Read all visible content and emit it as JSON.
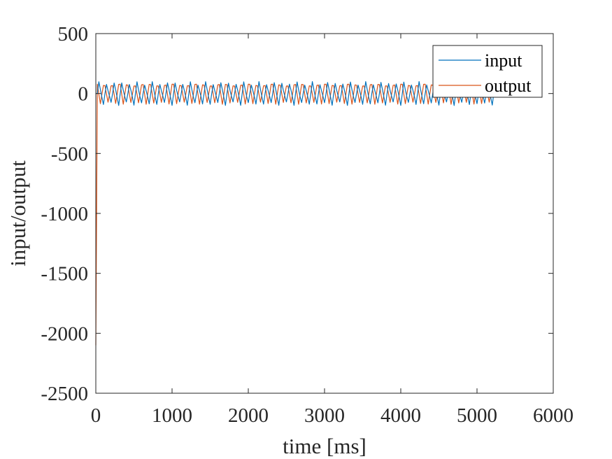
{
  "chart_data": {
    "type": "line",
    "xlabel": "time [ms]",
    "ylabel": "input/output",
    "xlim": [
      0,
      6000
    ],
    "ylim": [
      -2500,
      500
    ],
    "x_ticks": [
      0,
      1000,
      2000,
      3000,
      4000,
      5000,
      6000
    ],
    "y_ticks": [
      500,
      0,
      -500,
      -1000,
      -1500,
      -2000,
      -2500
    ],
    "x_tick_labels": [
      "0",
      "1000",
      "2000",
      "3000",
      "4000",
      "5000",
      "6000"
    ],
    "y_tick_labels": [
      "500",
      "0",
      "-500",
      "-1000",
      "-1500",
      "-2000",
      "-2500"
    ],
    "grid": false,
    "box": true,
    "legend_position": "top-right",
    "series": [
      {
        "name": "input",
        "color": "#0072BD",
        "x_start": 0,
        "x_end": 5220,
        "period": 100,
        "initial": 0,
        "amplitude": 100,
        "waveform": "periodic oscillation between about -100 and 100"
      },
      {
        "name": "output",
        "color": "#D95319",
        "x_start": 0,
        "x_end": 5220,
        "period": 100,
        "initial": -2100,
        "amplitude": 120,
        "waveform": "drops to about -2100 at t=0, then periodic oscillation between about -100 and 120"
      }
    ]
  }
}
